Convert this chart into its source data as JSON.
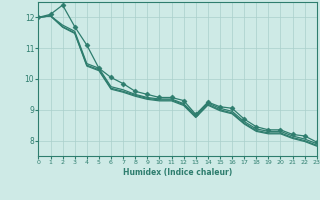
{
  "xlabel": "Humidex (Indice chaleur)",
  "ylabel": "",
  "background_color": "#ceeae6",
  "line_color": "#2e7d6e",
  "grid_color": "#aacfcb",
  "xlim": [
    0,
    23
  ],
  "ylim": [
    7.5,
    12.5
  ],
  "xticks": [
    0,
    1,
    2,
    3,
    4,
    5,
    6,
    7,
    8,
    9,
    10,
    11,
    12,
    13,
    14,
    15,
    16,
    17,
    18,
    19,
    20,
    21,
    22,
    23
  ],
  "yticks": [
    8,
    9,
    10,
    11,
    12
  ],
  "series": [
    {
      "x": [
        0,
        1,
        2,
        3,
        4,
        5,
        6,
        7,
        8,
        9,
        10,
        11,
        12,
        13,
        14,
        15,
        16,
        17,
        18,
        19,
        20,
        21,
        22,
        23
      ],
      "y": [
        12.0,
        12.1,
        12.4,
        11.7,
        11.1,
        10.35,
        10.05,
        9.85,
        9.6,
        9.5,
        9.4,
        9.4,
        9.3,
        8.85,
        9.25,
        9.1,
        9.05,
        8.7,
        8.45,
        8.35,
        8.35,
        8.2,
        8.15,
        7.95
      ],
      "marker": "D",
      "markersize": 2.5,
      "linewidth": 0.9,
      "has_marker": true
    },
    {
      "x": [
        0,
        1,
        2,
        3,
        4,
        5,
        6,
        7,
        8,
        9,
        10,
        11,
        12,
        13,
        14,
        15,
        16,
        17,
        18,
        19,
        20,
        21,
        22,
        23
      ],
      "y": [
        12.0,
        12.05,
        11.75,
        11.55,
        10.5,
        10.35,
        9.75,
        9.65,
        9.5,
        9.4,
        9.35,
        9.35,
        9.2,
        8.82,
        9.22,
        9.05,
        8.95,
        8.62,
        8.38,
        8.3,
        8.3,
        8.15,
        8.05,
        7.9
      ],
      "marker": null,
      "markersize": 0,
      "linewidth": 0.9,
      "has_marker": false
    },
    {
      "x": [
        0,
        1,
        2,
        3,
        4,
        5,
        6,
        7,
        8,
        9,
        10,
        11,
        12,
        13,
        14,
        15,
        16,
        17,
        18,
        19,
        20,
        21,
        22,
        23
      ],
      "y": [
        12.0,
        12.05,
        11.7,
        11.5,
        10.45,
        10.3,
        9.7,
        9.6,
        9.47,
        9.37,
        9.32,
        9.32,
        9.17,
        8.78,
        9.18,
        9.0,
        8.9,
        8.57,
        8.33,
        8.25,
        8.25,
        8.1,
        8.0,
        7.85
      ],
      "marker": null,
      "markersize": 0,
      "linewidth": 0.9,
      "has_marker": false
    },
    {
      "x": [
        0,
        1,
        2,
        3,
        4,
        5,
        6,
        7,
        8,
        9,
        10,
        11,
        12,
        13,
        14,
        15,
        16,
        17,
        18,
        19,
        20,
        21,
        22,
        23
      ],
      "y": [
        12.0,
        12.05,
        11.68,
        11.48,
        10.42,
        10.27,
        9.67,
        9.57,
        9.44,
        9.34,
        9.29,
        9.29,
        9.14,
        8.75,
        9.15,
        8.97,
        8.87,
        8.54,
        8.3,
        8.22,
        8.22,
        8.07,
        7.97,
        7.82
      ],
      "marker": null,
      "markersize": 0,
      "linewidth": 0.9,
      "has_marker": false
    }
  ]
}
